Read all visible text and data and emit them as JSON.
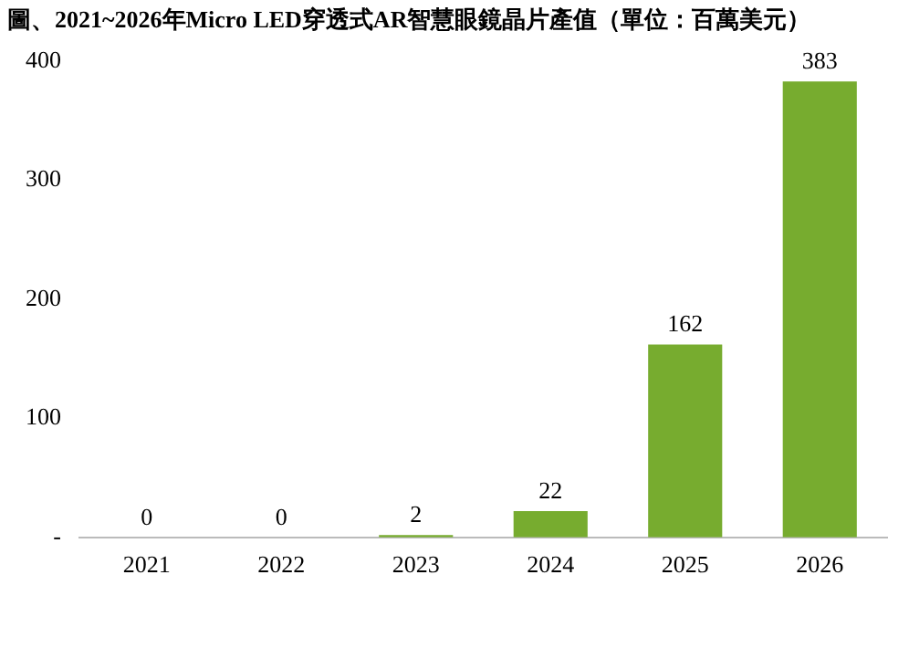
{
  "chart_data": {
    "type": "bar",
    "title": "圖、2021~2026年Micro LED穿透式AR智慧眼鏡晶片產值（單位：百萬美元）",
    "categories": [
      "2021",
      "2022",
      "2023",
      "2024",
      "2025",
      "2026"
    ],
    "values": [
      0,
      0,
      2,
      22,
      162,
      383
    ],
    "color": "#77ac2f",
    "ylim": [
      0,
      400
    ],
    "yticks": [
      {
        "value": 0,
        "label": "-"
      },
      100,
      200,
      300,
      400
    ],
    "data_labels": true,
    "grid": false,
    "legend": false
  }
}
